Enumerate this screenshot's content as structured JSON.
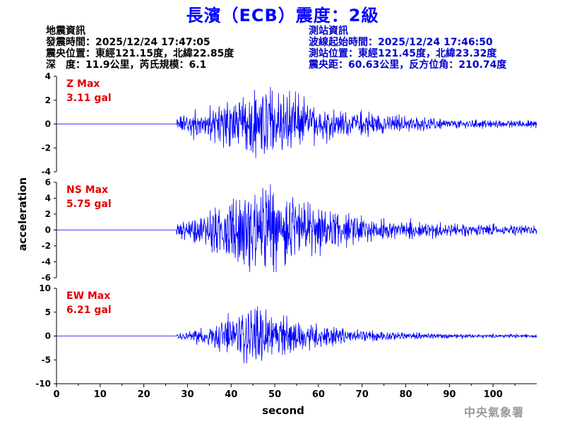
{
  "title": "長濱（ECB）震度：2級",
  "earthquake_info": {
    "heading": "地震資訊",
    "lines": [
      "發震時間：2025/12/24 17:47:05",
      "震央位置：東經121.15度，北緯22.85度",
      "深　度：11.9公里，芮氏規模：6.1"
    ]
  },
  "station_info": {
    "heading": "測站資訊",
    "lines": [
      "波線起始時間：2025/12/24 17:46:50",
      "測站位置：東經121.45度，北緯23.32度",
      "震央距：60.63公里，反方位角：210.74度"
    ]
  },
  "footer": "中央氣象署",
  "colors": {
    "title": "#0000ff",
    "trace": "#0000ff",
    "label": "#e00000",
    "station": "#0000cc"
  },
  "chart_data": {
    "type": "line",
    "xlabel": "second",
    "ylabel": "acceleration",
    "xlim": [
      0,
      110
    ],
    "xticks": [
      0,
      10,
      20,
      30,
      40,
      50,
      60,
      70,
      80,
      90,
      100
    ],
    "p_arrival_s": 27.5,
    "panels": [
      {
        "name": "Z Max",
        "max_label": "3.11 gal",
        "ylim": [
          -4,
          4
        ],
        "yticks": [
          4,
          2,
          0,
          -2,
          -4
        ],
        "peak": 3.11,
        "peak_time_s": 49,
        "envelope": [
          [
            27.5,
            0.5
          ],
          [
            31,
            0.9
          ],
          [
            36,
            1.4
          ],
          [
            41,
            1.9
          ],
          [
            45,
            2.4
          ],
          [
            48,
            2.6
          ],
          [
            51,
            2.4
          ],
          [
            55,
            1.9
          ],
          [
            60,
            1.4
          ],
          [
            66,
            1.0
          ],
          [
            72,
            0.8
          ],
          [
            80,
            0.55
          ],
          [
            90,
            0.35
          ],
          [
            100,
            0.28
          ],
          [
            110,
            0.25
          ]
        ]
      },
      {
        "name": "NS Max",
        "max_label": "5.75 gal",
        "ylim": [
          -6,
          6
        ],
        "yticks": [
          6,
          4,
          2,
          0,
          -2,
          -4,
          -6
        ],
        "peak": 5.75,
        "peak_time_s": 49,
        "envelope": [
          [
            27.5,
            0.6
          ],
          [
            31,
            1.2
          ],
          [
            36,
            2.4
          ],
          [
            41,
            3.6
          ],
          [
            45,
            4.5
          ],
          [
            48,
            5.0
          ],
          [
            51,
            4.4
          ],
          [
            55,
            3.3
          ],
          [
            60,
            2.4
          ],
          [
            66,
            1.7
          ],
          [
            72,
            1.3
          ],
          [
            80,
            1.0
          ],
          [
            90,
            0.7
          ],
          [
            100,
            0.6
          ],
          [
            110,
            0.5
          ]
        ]
      },
      {
        "name": "EW Max",
        "max_label": "6.21 gal",
        "ylim": [
          -10,
          10
        ],
        "yticks": [
          10,
          5,
          0,
          -5,
          -10
        ],
        "peak": 6.21,
        "peak_time_s": 46,
        "envelope": [
          [
            27.5,
            0.5
          ],
          [
            31,
            1.2
          ],
          [
            36,
            2.3
          ],
          [
            41,
            3.8
          ],
          [
            45,
            5.0
          ],
          [
            48,
            4.6
          ],
          [
            51,
            4.0
          ],
          [
            55,
            3.0
          ],
          [
            60,
            2.1
          ],
          [
            66,
            1.4
          ],
          [
            72,
            1.0
          ],
          [
            80,
            0.6
          ],
          [
            90,
            0.45
          ],
          [
            100,
            0.35
          ],
          [
            110,
            0.3
          ]
        ]
      }
    ]
  }
}
